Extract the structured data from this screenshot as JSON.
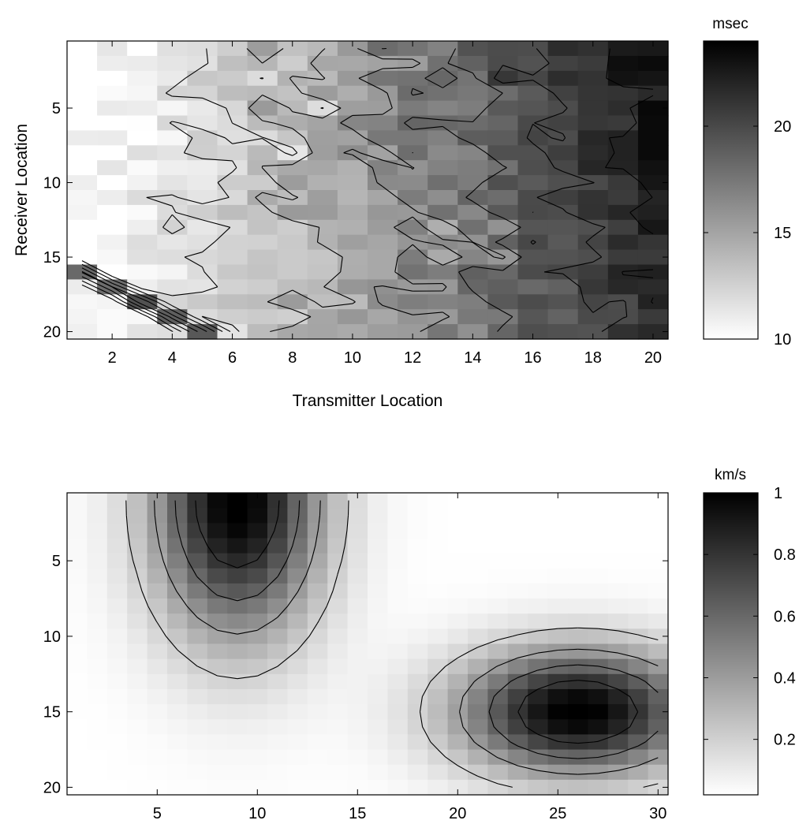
{
  "chart_data": [
    {
      "type": "heatmap",
      "title": "",
      "xlabel": "Transmitter Location",
      "ylabel": "Receiver Location",
      "colorbar_label": "msec",
      "colormap": "gray-reversed (white = low, black = high)",
      "x_range": [
        1,
        20
      ],
      "y_range": [
        1,
        20
      ],
      "y_direction": "top-to-bottom",
      "xticks": [
        2,
        4,
        6,
        8,
        10,
        12,
        14,
        16,
        18,
        20
      ],
      "xtick_labels": [
        "2",
        "4",
        "6",
        "8",
        "10",
        "12",
        "14",
        "16",
        "18",
        "20"
      ],
      "yticks": [
        5,
        10,
        15,
        20
      ],
      "ytick_labels": [
        "5",
        "10",
        "15",
        "20"
      ],
      "clim": [
        10,
        24
      ],
      "cbar_ticks": [
        10,
        15,
        20
      ],
      "cbar_tick_labels": [
        "10",
        "15",
        "20"
      ],
      "contour_levels": [
        12,
        14,
        16,
        18,
        20,
        22
      ],
      "description_of_field": "travel time increasing from ~10 msec at left to ~24 msec at top-right"
    },
    {
      "type": "heatmap",
      "title": "",
      "xlabel": "",
      "ylabel": "",
      "colorbar_label": "km/s",
      "colormap": "gray-reversed (white = low, black = high)",
      "x_range": [
        1,
        30
      ],
      "y_range": [
        1,
        20
      ],
      "y_direction": "top-to-bottom",
      "xticks": [
        5,
        10,
        15,
        20,
        25,
        30
      ],
      "xtick_labels": [
        "5",
        "10",
        "15",
        "20",
        "25",
        "30"
      ],
      "yticks": [
        5,
        10,
        15,
        20
      ],
      "ytick_labels": [
        "5",
        "10",
        "15",
        "20"
      ],
      "clim": [
        0.02,
        1
      ],
      "cbar_ticks": [
        0.2,
        0.4,
        0.6,
        0.8,
        1
      ],
      "cbar_tick_labels": [
        "0.2",
        "0.4",
        "0.6",
        "0.8",
        "1"
      ],
      "contour_levels": [
        0.2,
        0.4,
        0.6,
        0.8
      ],
      "anomalies": [
        {
          "x": 9,
          "y": 1,
          "peak": 1.0
        },
        {
          "x": 26,
          "y": 15,
          "peak": 1.0
        }
      ]
    }
  ]
}
